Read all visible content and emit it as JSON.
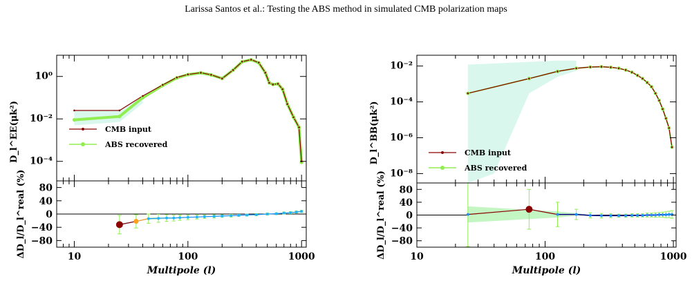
{
  "header": {
    "title": "Larissa Santos et al.: Testing the ABS method in simulated CMB polarization maps"
  },
  "colors": {
    "input": "#8b0000",
    "recovered": "#90ee50",
    "band": "#d9f7ec",
    "resid_band": "#c4f6c4",
    "resid_line": "#1e90ff",
    "resid_line_right": "#00008b",
    "orange": "#ff9f1a"
  },
  "chart_data": [
    {
      "type": "line",
      "panel": "EE",
      "xlabel": "Multipole (l)",
      "ylabel_top": "D_l^EE(μk²)",
      "ylabel_top_sub": "EE",
      "ylabel_bottom": "ΔD_l/D_l^real (%)",
      "xscale": "log",
      "xlim": [
        7,
        1100
      ],
      "yscale_top": "log",
      "ylim_top": [
        1.2e-05,
        10
      ],
      "ylim_bottom": [
        -100,
        100
      ],
      "xticks": [
        10,
        100,
        1000
      ],
      "xticklabels": [
        "10",
        "100",
        "1000"
      ],
      "yticks_top": [
        1,
        0.01,
        0.0001
      ],
      "yticklabels_top": [
        "10⁰",
        "10⁻²",
        "10⁻⁴"
      ],
      "yticks_bottom": [
        80,
        40,
        0,
        -40,
        -80
      ],
      "yticklabels_bottom": [
        "80",
        "40",
        "0",
        "−40",
        "−80"
      ],
      "legend": {
        "position": "middle-left",
        "entries": [
          "CMB input",
          "ABS recovered"
        ]
      },
      "series": [
        {
          "name": "CMB input",
          "points": [
            [
              10,
              0.025
            ],
            [
              25,
              0.025
            ],
            [
              40,
              0.12
            ],
            [
              60,
              0.4
            ],
            [
              80,
              0.9
            ],
            [
              100,
              1.25
            ],
            [
              130,
              1.5
            ],
            [
              160,
              1.2
            ],
            [
              200,
              0.8
            ],
            [
              250,
              2.0
            ],
            [
              300,
              5.0
            ],
            [
              360,
              6.2
            ],
            [
              420,
              4.5
            ],
            [
              480,
              1.5
            ],
            [
              520,
              0.5
            ],
            [
              560,
              0.42
            ],
            [
              620,
              0.45
            ],
            [
              680,
              0.25
            ],
            [
              750,
              0.05
            ],
            [
              850,
              0.012
            ],
            [
              950,
              0.004
            ],
            [
              1000,
              0.0001
            ]
          ]
        },
        {
          "name": "ABS recovered",
          "points": [
            [
              10,
              0.009
            ],
            [
              25,
              0.013
            ],
            [
              40,
              0.1
            ],
            [
              60,
              0.38
            ],
            [
              80,
              0.86
            ],
            [
              100,
              1.22
            ],
            [
              130,
              1.48
            ],
            [
              160,
              1.18
            ],
            [
              200,
              0.8
            ],
            [
              250,
              2.0
            ],
            [
              300,
              4.9
            ],
            [
              360,
              6.1
            ],
            [
              420,
              4.4
            ],
            [
              480,
              1.5
            ],
            [
              520,
              0.5
            ],
            [
              560,
              0.42
            ],
            [
              620,
              0.45
            ],
            [
              680,
              0.25
            ],
            [
              750,
              0.05
            ],
            [
              850,
              0.012
            ],
            [
              950,
              0.004
            ],
            [
              1000,
              9e-05
            ]
          ]
        }
      ],
      "residuals": {
        "highlight_points": [
          {
            "l": 25,
            "value": -32,
            "err": 28,
            "color": "#8b0000",
            "size": 5
          },
          {
            "l": 35,
            "value": -22,
            "err": 20,
            "color": "#ff9f1a",
            "size": 3.5
          }
        ],
        "points": [
          [
            45,
            -14
          ],
          [
            55,
            -13
          ],
          [
            65,
            -12
          ],
          [
            75,
            -12
          ],
          [
            85,
            -11
          ],
          [
            100,
            -10
          ],
          [
            120,
            -9
          ],
          [
            140,
            -8
          ],
          [
            170,
            -7
          ],
          [
            200,
            -6
          ],
          [
            240,
            -5
          ],
          [
            280,
            -4
          ],
          [
            330,
            -3
          ],
          [
            400,
            -2
          ],
          [
            500,
            0
          ],
          [
            600,
            1
          ],
          [
            700,
            3
          ],
          [
            800,
            4
          ],
          [
            900,
            6
          ],
          [
            1000,
            8
          ]
        ],
        "errors": [
          [
            45,
            14
          ],
          [
            55,
            12
          ],
          [
            65,
            10
          ],
          [
            75,
            9
          ],
          [
            85,
            8
          ],
          [
            100,
            7
          ],
          [
            120,
            6
          ],
          [
            140,
            5
          ],
          [
            170,
            5
          ],
          [
            200,
            4
          ],
          [
            240,
            4
          ],
          [
            280,
            3
          ],
          [
            330,
            3
          ],
          [
            400,
            3
          ],
          [
            500,
            3
          ],
          [
            600,
            3
          ],
          [
            700,
            3
          ],
          [
            800,
            3
          ],
          [
            900,
            3
          ],
          [
            1000,
            3
          ]
        ]
      }
    },
    {
      "type": "line",
      "panel": "BB",
      "xlabel": "Multipole (l)",
      "ylabel_top": "D_l^BB(μk²)",
      "ylabel_top_sub": "BB",
      "ylabel_bottom": "ΔD_l/D_l^real (%)",
      "xscale": "log",
      "xlim": [
        10,
        1050
      ],
      "yscale_top": "log",
      "ylim_top": [
        3e-09,
        0.04
      ],
      "ylim_bottom": [
        -100,
        100
      ],
      "xticks": [
        10,
        100,
        1000
      ],
      "xticklabels": [
        "10",
        "100",
        "1000"
      ],
      "yticks_top": [
        0.01,
        0.0001,
        1e-06,
        1e-08
      ],
      "yticklabels_top": [
        "10⁻²",
        "10⁻⁴",
        "10⁻⁶",
        "10⁻⁸"
      ],
      "yticks_bottom": [
        80,
        40,
        0,
        -40,
        -80
      ],
      "yticklabels_bottom": [
        "80",
        "40",
        "0",
        "−40",
        "−80"
      ],
      "legend": {
        "position": "bottom-left",
        "entries": [
          "CMB input",
          "ABS recovered"
        ]
      },
      "series": [
        {
          "name": "CMB input",
          "points": [
            [
              25,
              0.0003
            ],
            [
              75,
              0.002
            ],
            [
              125,
              0.005
            ],
            [
              175,
              0.0075
            ],
            [
              225,
              0.0088
            ],
            [
              275,
              0.0092
            ],
            [
              325,
              0.0085
            ],
            [
              375,
              0.0075
            ],
            [
              425,
              0.006
            ],
            [
              475,
              0.0045
            ],
            [
              525,
              0.003
            ],
            [
              575,
              0.002
            ],
            [
              625,
              0.0012
            ],
            [
              675,
              0.0007
            ],
            [
              725,
              0.0003
            ],
            [
              775,
              0.00012
            ],
            [
              825,
              4e-05
            ],
            [
              875,
              1.2e-05
            ],
            [
              925,
              3.5e-06
            ],
            [
              975,
              3e-07
            ]
          ]
        },
        {
          "name": "ABS recovered",
          "points": [
            [
              25,
              0.0003
            ],
            [
              75,
              0.002
            ],
            [
              125,
              0.005
            ],
            [
              175,
              0.0075
            ],
            [
              225,
              0.0088
            ],
            [
              275,
              0.0092
            ],
            [
              325,
              0.0085
            ],
            [
              375,
              0.0075
            ],
            [
              425,
              0.006
            ],
            [
              475,
              0.0045
            ],
            [
              525,
              0.003
            ],
            [
              575,
              0.002
            ],
            [
              625,
              0.0012
            ],
            [
              675,
              0.0007
            ],
            [
              725,
              0.0003
            ],
            [
              775,
              0.00012
            ],
            [
              825,
              4e-05
            ],
            [
              875,
              1.2e-05
            ],
            [
              925,
              3.5e-06
            ],
            [
              975,
              3e-07
            ]
          ]
        }
      ],
      "residuals": {
        "highlight_points": [
          {
            "l": 75,
            "value": 18,
            "err": 62,
            "color": "#8b0000",
            "size": 5
          }
        ],
        "points": [
          [
            25,
            2
          ],
          [
            125,
            2
          ],
          [
            175,
            2
          ],
          [
            225,
            -1
          ],
          [
            275,
            -2
          ],
          [
            325,
            -2
          ],
          [
            375,
            -2
          ],
          [
            425,
            -2
          ],
          [
            475,
            -1
          ],
          [
            525,
            -1
          ],
          [
            575,
            -1
          ],
          [
            625,
            0
          ],
          [
            675,
            0
          ],
          [
            725,
            0
          ],
          [
            775,
            1
          ],
          [
            825,
            1
          ],
          [
            875,
            1
          ],
          [
            925,
            2
          ],
          [
            975,
            2
          ]
        ],
        "errors": [
          [
            25,
            100
          ],
          [
            125,
            38
          ],
          [
            175,
            16
          ],
          [
            225,
            8
          ],
          [
            275,
            7
          ],
          [
            325,
            6
          ],
          [
            375,
            5
          ],
          [
            425,
            5
          ],
          [
            475,
            5
          ],
          [
            525,
            5
          ],
          [
            575,
            5
          ],
          [
            625,
            6
          ],
          [
            675,
            6
          ],
          [
            725,
            7
          ],
          [
            775,
            7
          ],
          [
            825,
            8
          ],
          [
            875,
            9
          ],
          [
            925,
            10
          ],
          [
            975,
            12
          ]
        ]
      }
    }
  ]
}
